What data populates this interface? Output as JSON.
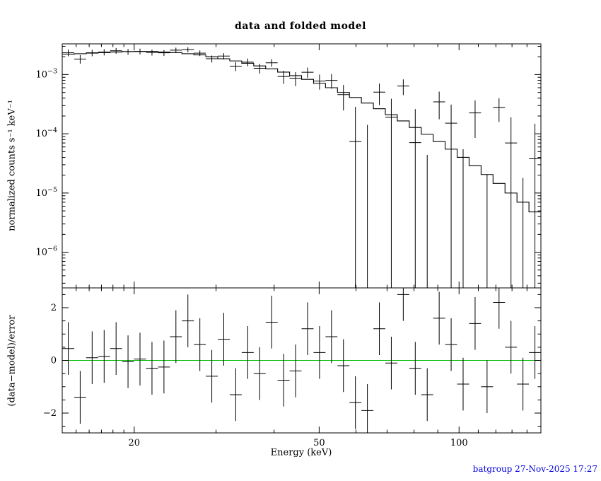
{
  "footer": {
    "text": "batgroup 27-Nov-2025 17:27",
    "color": "#0000dd"
  },
  "chart_data": {
    "type": "line",
    "title": "data and folded model",
    "xlabel": "Energy (keV)",
    "ylabel_top": "normalized counts s⁻¹ keV⁻¹",
    "ylabel_bottom": "(data−model)/error",
    "x_scale": "log",
    "x_range": [
      14.0,
      150.0
    ],
    "x_major_ticks": [
      20,
      50,
      100
    ],
    "x_minor_ticks": [
      15,
      16,
      17,
      18,
      19,
      30,
      40,
      60,
      70,
      80,
      90,
      110,
      120,
      130,
      140
    ],
    "top_panel": {
      "y_scale": "log",
      "y_range": [
        2.5e-07,
        0.0033
      ],
      "y_major_ticks": [
        1e-06,
        1e-05,
        0.0001,
        0.001
      ]
    },
    "bottom_panel": {
      "y_scale": "linear",
      "y_range": [
        -2.75,
        2.75
      ],
      "y_major_ticks": [
        -2,
        0,
        2
      ],
      "y_minor_ticks": [
        -2.5,
        -1.5,
        -1,
        -0.5,
        0.5,
        1,
        1.5,
        2.5
      ],
      "zero_line_color": "#00bb00"
    },
    "bin_edges": [
      14.0,
      14.86,
      15.76,
      16.73,
      17.75,
      18.83,
      19.98,
      21.2,
      22.5,
      23.87,
      25.33,
      26.88,
      28.52,
      30.26,
      32.11,
      34.07,
      36.15,
      38.36,
      40.7,
      43.19,
      45.83,
      48.63,
      51.6,
      54.75,
      58.09,
      61.64,
      65.41,
      69.4,
      73.64,
      78.14,
      82.91,
      87.98,
      93.35,
      99.05,
      105.1,
      111.53,
      118.34,
      125.57,
      133.24,
      141.38,
      150.0
    ],
    "model": [
      0.0022,
      0.00225,
      0.0023,
      0.00235,
      0.0024,
      0.00245,
      0.00245,
      0.00245,
      0.0024,
      0.00235,
      0.00225,
      0.00215,
      0.002,
      0.00185,
      0.0017,
      0.00155,
      0.0014,
      0.00125,
      0.0011,
      0.00096,
      0.00083,
      0.00071,
      0.0006,
      0.0005,
      0.00041,
      0.00033,
      0.000265,
      0.00021,
      0.000165,
      0.000128,
      9.8e-05,
      7.4e-05,
      5.5e-05,
      4e-05,
      2.9e-05,
      2.05e-05,
      1.45e-05,
      1e-05,
      7e-06,
      4.8e-06
    ],
    "errors": [
      0.0003,
      0.0003,
      0.00029,
      0.00029,
      0.00028,
      0.00028,
      0.00028,
      0.00027,
      0.00027,
      0.00026,
      0.00026,
      0.00025,
      0.00025,
      0.00025,
      0.00024,
      0.00024,
      0.00024,
      0.00023,
      0.00023,
      0.00023,
      0.00022,
      0.00022,
      0.00022,
      0.00021,
      0.00021,
      0.00021,
      0.0002,
      0.0002,
      0.00019,
      0.00019,
      0.00018,
      0.00017,
      0.00016,
      0.00015,
      0.00014,
      0.00013,
      0.00012,
      0.00012,
      0.00011,
      0.00011
    ],
    "residuals": [
      0.45,
      -1.4,
      0.1,
      0.15,
      0.45,
      -0.05,
      0.05,
      -0.3,
      -0.25,
      0.9,
      1.5,
      0.6,
      -0.6,
      0.8,
      -1.3,
      0.3,
      -0.5,
      1.45,
      -0.75,
      -0.4,
      1.2,
      0.3,
      0.9,
      -0.2,
      -1.6,
      -1.9,
      1.2,
      -0.1,
      2.5,
      -0.3,
      -1.3,
      1.6,
      0.6,
      -0.9,
      1.4,
      -1.0,
      2.2,
      0.5,
      -0.9,
      0.3
    ]
  }
}
